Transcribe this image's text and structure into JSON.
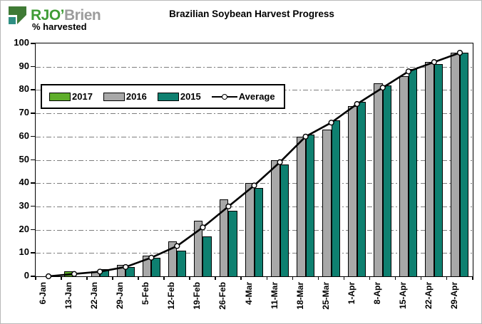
{
  "logo": {
    "text_primary": "RJO’",
    "text_secondary": "Brien"
  },
  "chart_data": {
    "type": "bar",
    "title": "Brazilian Soybean Harvest Progress",
    "ylabel": "% harvested",
    "xlabel": "",
    "ylim": [
      0,
      100
    ],
    "ytick_step": 10,
    "grid": "horizontal dash-dot",
    "legend_position": "inside top-left",
    "categories": [
      "6-Jan",
      "13-Jan",
      "22-Jan",
      "29-Jan",
      "5-Feb",
      "12-Feb",
      "19-Feb",
      "26-Feb",
      "4-Mar",
      "11-Mar",
      "18-Mar",
      "25-Mar",
      "1-Apr",
      "8-Apr",
      "15-Apr",
      "22-Apr",
      "29-Apr"
    ],
    "series": [
      {
        "name": "2017",
        "color": "#5fae2b",
        "values": [
          0,
          2,
          0,
          0,
          0,
          0,
          0,
          0,
          0,
          0,
          0,
          0,
          0,
          0,
          0,
          0,
          0
        ]
      },
      {
        "name": "2016",
        "color": "#a8a8a8",
        "values": [
          0,
          0,
          2,
          5,
          9,
          15,
          24,
          33,
          40,
          50,
          60,
          63,
          73,
          83,
          86,
          92,
          96
        ]
      },
      {
        "name": "2015",
        "color": "#0e8070",
        "values": [
          0,
          0,
          3,
          4,
          8,
          11,
          17,
          28,
          38,
          48,
          61,
          67,
          75,
          82,
          89,
          91,
          96
        ]
      }
    ],
    "average": {
      "name": "Average",
      "line_color": "#000000",
      "marker": "white circle",
      "values": [
        0,
        1,
        2,
        4,
        8,
        13,
        21,
        30,
        39,
        49,
        60,
        66,
        74,
        81,
        88,
        92,
        96
      ]
    }
  }
}
